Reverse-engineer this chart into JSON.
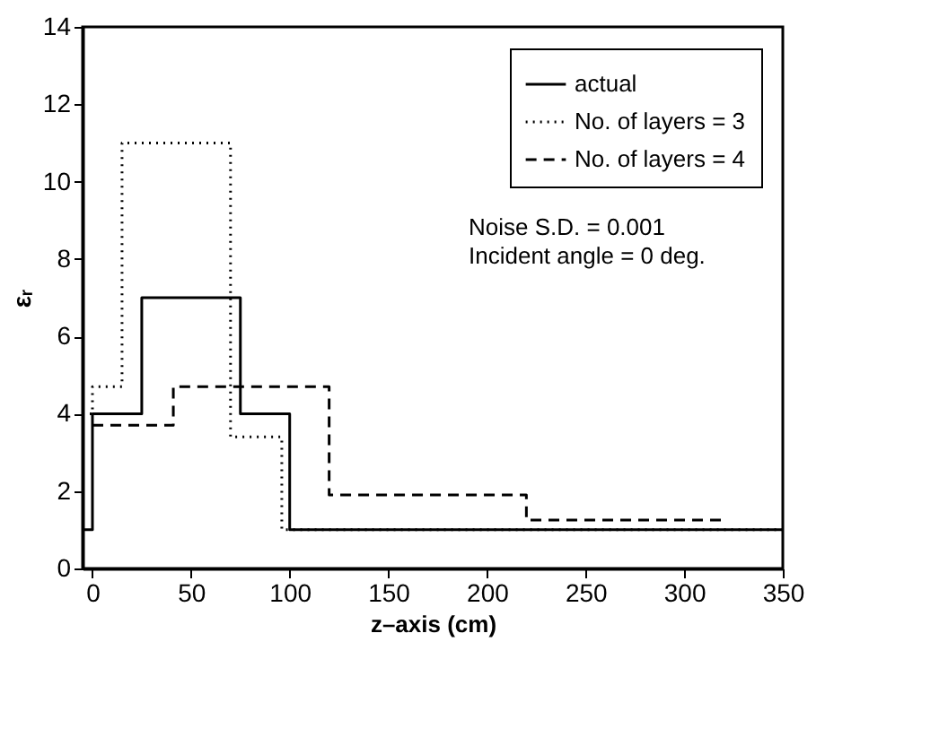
{
  "chart_data": {
    "type": "step",
    "xlabel": "z–axis (cm)",
    "ylabel": "εᵣ",
    "xlim": [
      -5,
      350
    ],
    "xticks": [
      0,
      50,
      100,
      150,
      200,
      250,
      300,
      350
    ],
    "ylim": [
      0,
      14
    ],
    "yticks": [
      0,
      2,
      4,
      6,
      8,
      10,
      12,
      14
    ],
    "grid": false,
    "legend": "top right",
    "annotations": [
      "Noise S.D. = 0.001",
      "Incident angle = 0 deg."
    ],
    "series": [
      {
        "name": "actual",
        "color": "#000000",
        "line_style": "solid",
        "x": [
          -5,
          0,
          25,
          75,
          100,
          350
        ],
        "values": [
          1,
          4,
          7,
          4,
          1,
          1
        ]
      },
      {
        "name": "No. of layers = 3",
        "color": "#000000",
        "line_style": "dotted",
        "x": [
          -5,
          0,
          15,
          70,
          96,
          350
        ],
        "values": [
          4,
          4.7,
          11,
          3.4,
          1,
          1
        ]
      },
      {
        "name": "No. of layers = 4",
        "color": "#000000",
        "line_style": "dashed",
        "x": [
          0,
          41,
          120,
          220,
          320
        ],
        "values": [
          3.7,
          4.7,
          1.9,
          1.25,
          1.25
        ]
      }
    ]
  }
}
